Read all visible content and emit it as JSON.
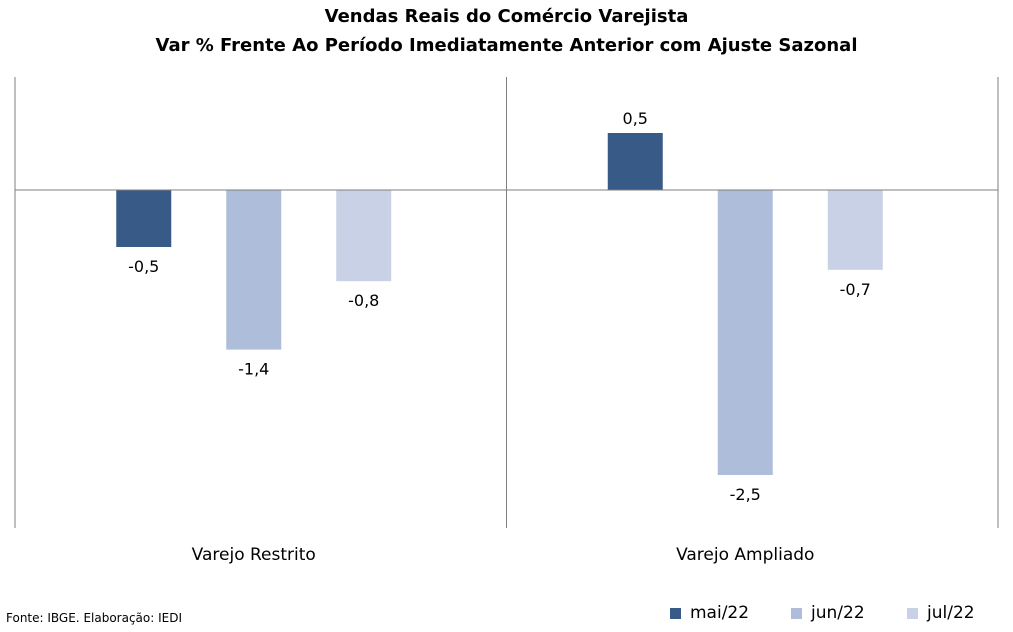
{
  "chart_data": {
    "type": "bar",
    "title": "Vendas Reais do Comércio Varejista",
    "subtitle": "Var % Frente Ao Período Imediatamente Anterior com Ajuste Sazonal",
    "categories": [
      "Varejo Restrito",
      "Varejo Ampliado"
    ],
    "series": [
      {
        "name": "mai/22",
        "color": "#375a87",
        "values": [
          -0.5,
          0.5
        ],
        "labels": [
          "-0,5",
          "0,5"
        ]
      },
      {
        "name": "jun/22",
        "color": "#aebdd9",
        "values": [
          -1.4,
          -2.5
        ],
        "labels": [
          "-1,4",
          "-2,5"
        ]
      },
      {
        "name": "jul/22",
        "color": "#c9d1e6",
        "values": [
          -0.8,
          -0.7
        ],
        "labels": [
          "-0,8",
          "-0,7"
        ]
      }
    ],
    "ylim": [
      -2.95,
      1.0
    ],
    "grid": false,
    "legend_position": "bottom-right",
    "data_labels": true
  },
  "footer": {
    "source": "Fonte: IBGE. Elaboração: IEDI"
  }
}
